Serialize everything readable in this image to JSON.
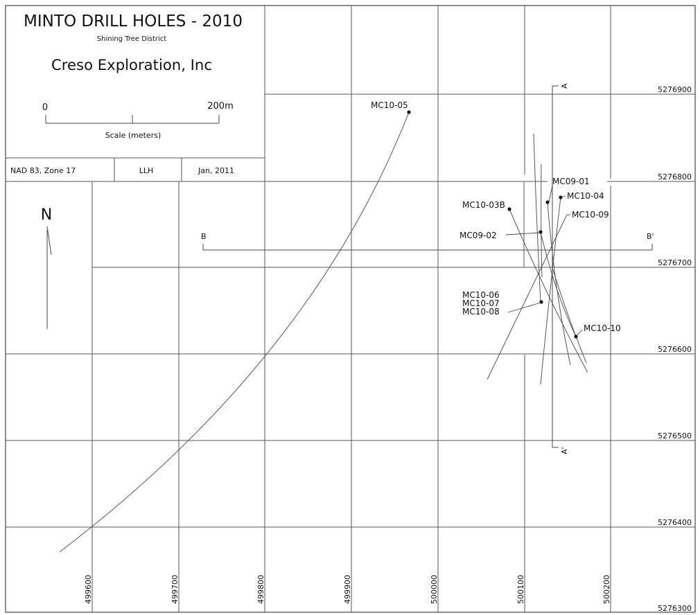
{
  "title_block": {
    "title": "MINTO DRILL HOLES - 2010",
    "district": "Shining Tree District",
    "company": "Creso Exploration, Inc",
    "scale": {
      "start_label": "0",
      "end_label": "200m",
      "caption": "Scale (meters)"
    },
    "datum": "NAD 83, Zone 17",
    "author": "LLH",
    "date": "Jan, 2011"
  },
  "north_arrow": {
    "label": "N"
  },
  "grid": {
    "eastings": [
      "499600",
      "499700",
      "499800",
      "499900",
      "500000",
      "500100",
      "500200"
    ],
    "northings": [
      "5276900",
      "5276800",
      "5276700",
      "5276600",
      "5276500",
      "5276400",
      "5276300"
    ]
  },
  "sections": {
    "a_label": "A",
    "a_prime_label": "A'",
    "b_label": "B",
    "b_prime_label": "B'"
  },
  "drill_holes": {
    "mc10_05": "MC10-05",
    "mc09_01": "MC09-01",
    "mc10_04": "MC10-04",
    "mc10_03b": "MC10-03B",
    "mc10_09": "MC10-09",
    "mc09_02": "MC09-02",
    "mc10_06": "MC10-06",
    "mc10_07": "MC10-07",
    "mc10_08": "MC10-08",
    "mc10_10": "MC10-10"
  }
}
